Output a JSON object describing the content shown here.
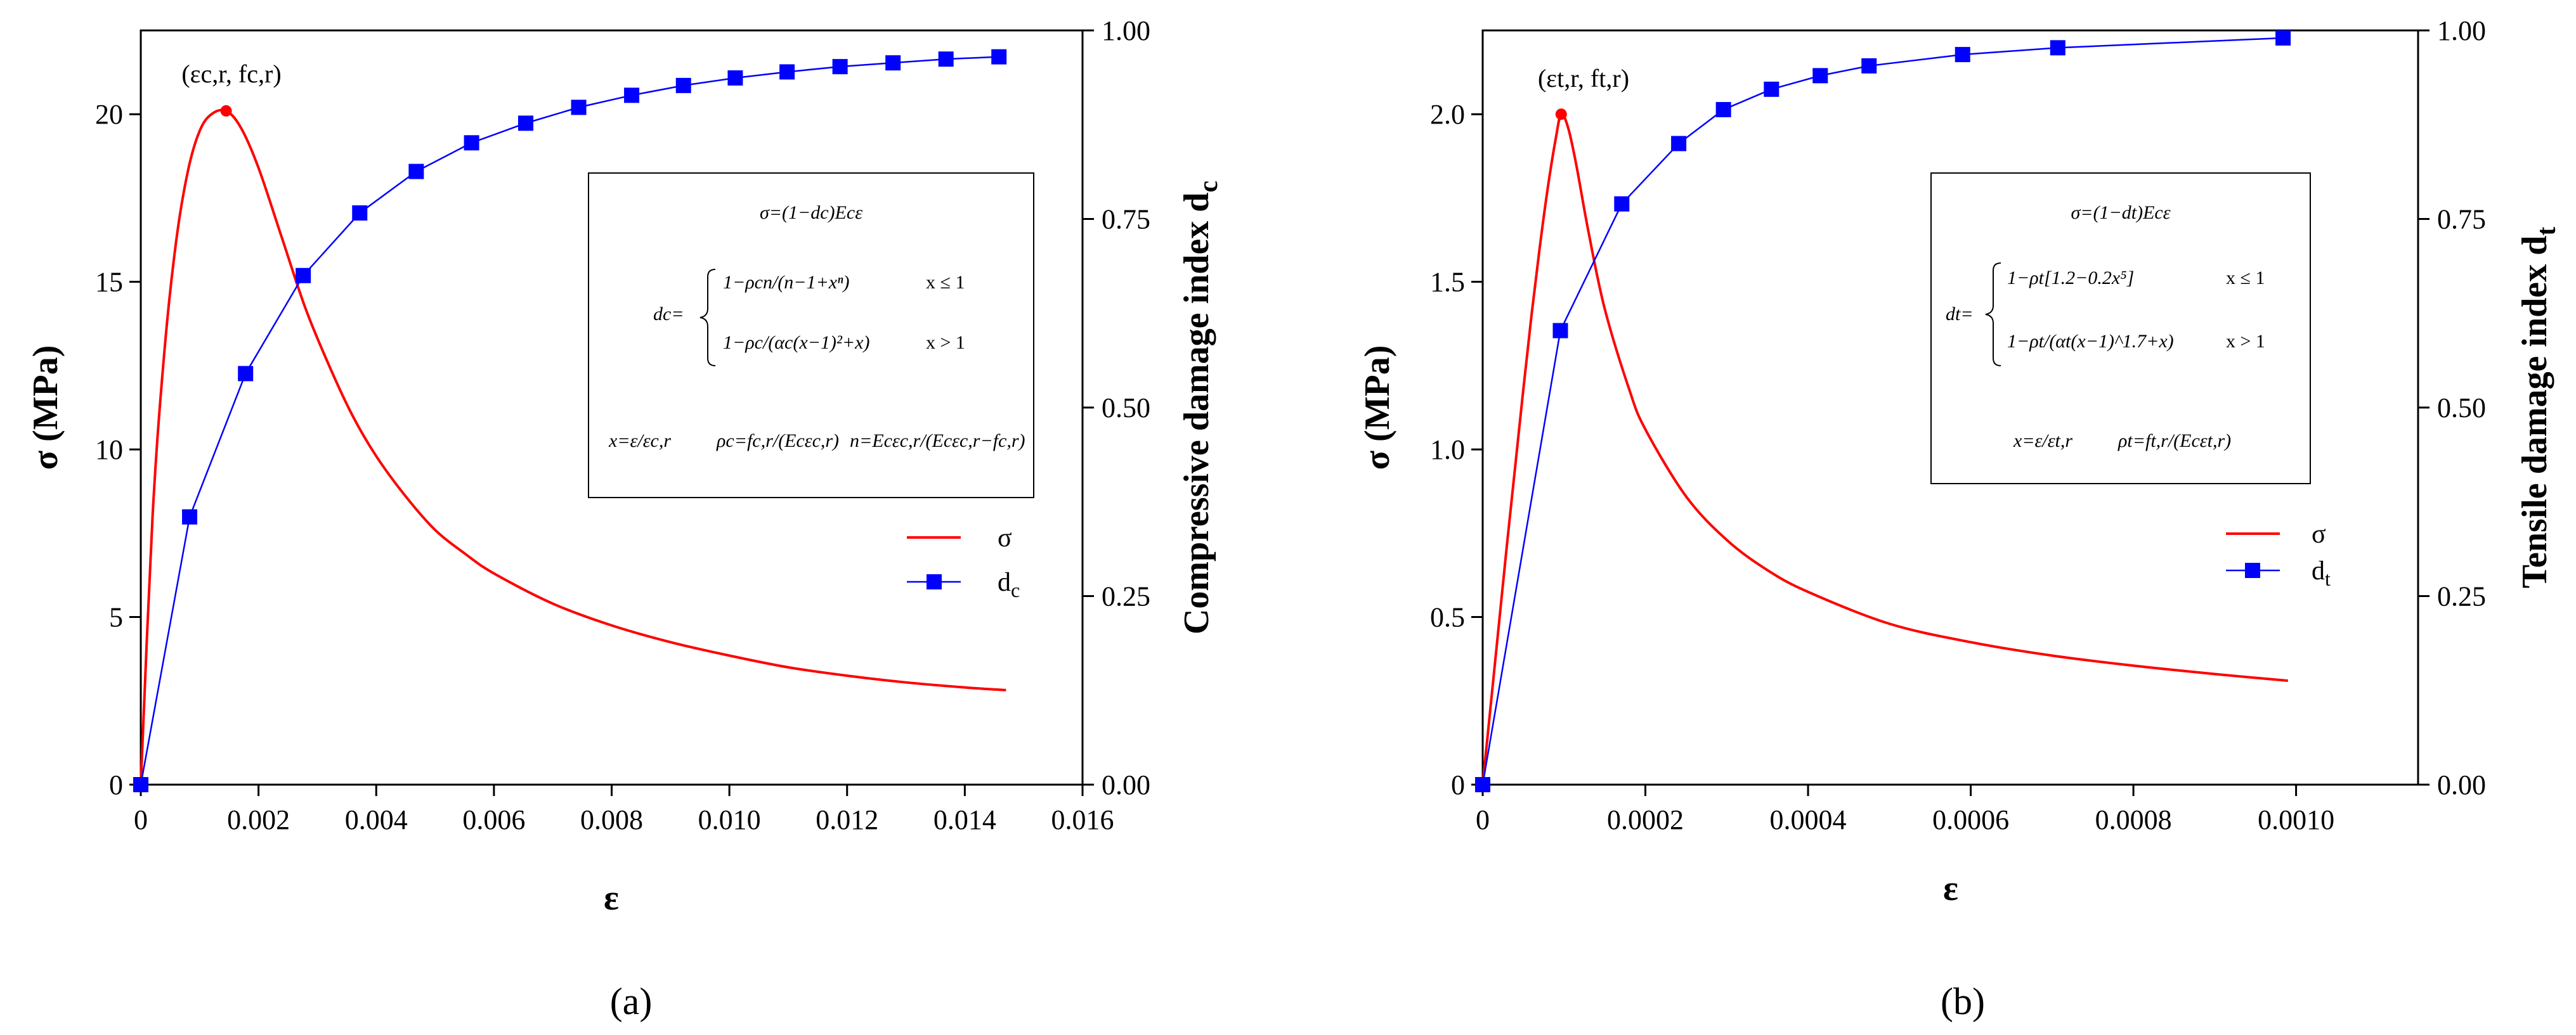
{
  "chart_data": [
    {
      "type": "line",
      "panel_label": "(a)",
      "xlabel": "ε",
      "ylabel": "σ (MPa)",
      "y2label": "Compressive damage index d",
      "y2label_sub": "c",
      "xlim": [
        0,
        0.016
      ],
      "ylim": [
        0,
        22.5
      ],
      "y2lim": [
        0,
        1.0
      ],
      "x_ticks": [
        "0",
        "0.002",
        "0.004",
        "0.006",
        "0.008",
        "0.010",
        "0.012",
        "0.014",
        "0.016"
      ],
      "y_ticks": [
        "0",
        "5",
        "10",
        "15",
        "20"
      ],
      "y2_ticks": [
        "0.00",
        "0.25",
        "0.50",
        "0.75",
        "1.00"
      ],
      "peak_label": "(εc,r, fc,r)",
      "peak": {
        "x": 0.00145,
        "y": 20.1
      },
      "series": [
        {
          "name": "σ",
          "color": "#ff0000",
          "axis": "left",
          "x": [
            0,
            0.0002,
            0.0004,
            0.0006,
            0.0008,
            0.001,
            0.0012,
            0.00145,
            0.0017,
            0.002,
            0.0024,
            0.0028,
            0.0032,
            0.0036,
            0.004,
            0.0045,
            0.005,
            0.0055,
            0.006,
            0.007,
            0.008,
            0.009,
            0.01,
            0.011,
            0.012,
            0.013,
            0.014,
            0.0147
          ],
          "values": [
            0,
            8.0,
            12.9,
            16.2,
            18.3,
            19.5,
            20.0,
            20.1,
            19.6,
            18.4,
            16.3,
            14.2,
            12.5,
            11.0,
            9.8,
            8.6,
            7.6,
            6.9,
            6.3,
            5.4,
            4.75,
            4.25,
            3.85,
            3.5,
            3.25,
            3.05,
            2.9,
            2.82
          ]
        },
        {
          "name": "dc",
          "label_main": "d",
          "label_sub": "c",
          "color": "#0000ff",
          "axis": "right",
          "x": [
            0,
            0.00083,
            0.00178,
            0.00276,
            0.00372,
            0.00468,
            0.00562,
            0.00654,
            0.00744,
            0.00834,
            0.00922,
            0.0101,
            0.01098,
            0.01188,
            0.01278,
            0.01368,
            0.01458
          ],
          "values": [
            0,
            0.355,
            0.545,
            0.675,
            0.758,
            0.813,
            0.851,
            0.877,
            0.898,
            0.914,
            0.927,
            0.937,
            0.945,
            0.952,
            0.957,
            0.962,
            0.965
          ]
        }
      ],
      "equation_box": {
        "line1": "σ=(1−dc)Ecε",
        "lhs": "dc=",
        "case1": "1−ρcn/(n−1+xⁿ)",
        "cond1": "x ≤ 1",
        "case2": "1−ρc/(αc(x−1)²+x)",
        "cond2": "x > 1",
        "def1": "x=ε/εc,r",
        "def2": "ρc=fc,r/(Ecεc,r)",
        "def3": "n=Ecεc,r/(Ecεc,r−fc,r)"
      }
    },
    {
      "type": "line",
      "panel_label": "(b)",
      "xlabel": "ε",
      "ylabel": "σ (MPa)",
      "y2label": "Tensile damage index d",
      "y2label_sub": "t",
      "xlim": [
        0,
        0.00115
      ],
      "ylim": [
        0,
        2.25
      ],
      "y2lim": [
        0,
        1.0
      ],
      "x_ticks": [
        "0",
        "0.0002",
        "0.0004",
        "0.0006",
        "0.0008",
        "0.0010"
      ],
      "x_tick_values": [
        0,
        0.0002,
        0.0004,
        0.0006,
        0.0008,
        0.001
      ],
      "y_ticks": [
        "0",
        "0.5",
        "1.0",
        "1.5",
        "2.0"
      ],
      "y2_ticks": [
        "0.00",
        "0.25",
        "0.50",
        "0.75",
        "1.00"
      ],
      "peak_label": "(εt,r, ft,r)",
      "peak": {
        "x": 9.65e-05,
        "y": 2.0
      },
      "series": [
        {
          "name": "σ",
          "color": "#ff0000",
          "axis": "left",
          "x": [
            0,
            1e-05,
            2e-05,
            3e-05,
            4e-05,
            5e-05,
            6e-05,
            7e-05,
            8e-05,
            9e-05,
            9.65e-05,
            0.000105,
            0.000115,
            0.00013,
            0.00015,
            0.00018,
            0.0002,
            0.00025,
            0.0003,
            0.00035,
            0.0004,
            0.0005,
            0.0006,
            0.0007,
            0.0008,
            0.0009,
            0.00099
          ],
          "values": [
            0,
            0.24,
            0.48,
            0.72,
            0.95,
            1.18,
            1.4,
            1.6,
            1.78,
            1.93,
            2.0,
            1.96,
            1.85,
            1.65,
            1.42,
            1.18,
            1.06,
            0.86,
            0.73,
            0.64,
            0.575,
            0.48,
            0.425,
            0.385,
            0.355,
            0.33,
            0.31
          ]
        },
        {
          "name": "dt",
          "label_main": "d",
          "label_sub": "t",
          "color": "#0000ff",
          "axis": "right",
          "x": [
            0,
            9.55e-05,
            0.000171,
            0.000241,
            0.000296,
            0.000355,
            0.000415,
            0.000475,
            0.00059,
            0.000707,
            0.000984
          ],
          "values": [
            0,
            0.602,
            0.77,
            0.85,
            0.895,
            0.922,
            0.94,
            0.953,
            0.968,
            0.977,
            0.99
          ]
        }
      ],
      "equation_box": {
        "line1": "σ=(1−dt)Ecε",
        "lhs": "dt=",
        "case1": "1−ρt[1.2−0.2x⁵]",
        "cond1": "x ≤ 1",
        "case2": "1−ρt/(αt(x−1)^1.7+x)",
        "cond2": "x > 1",
        "def1": "x=ε/εt,r",
        "def2": "ρt=ft,r/(Ecεt,r)"
      }
    }
  ]
}
